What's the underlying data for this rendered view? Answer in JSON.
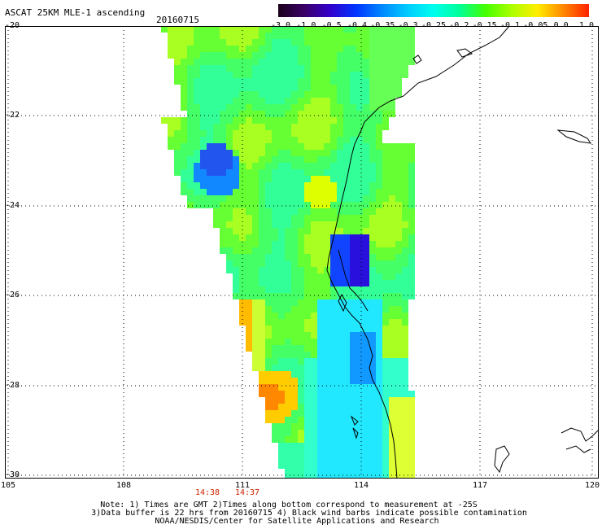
{
  "header": {
    "title": "ASCAT 25KM MLE-1 ascending",
    "date": "20160715"
  },
  "colorbar": {
    "labels": [
      "-3.0",
      "-1.0",
      "-0.5",
      "-0.4",
      "-0.35",
      "-0.3",
      "-0.25",
      "-0.2",
      "-0.15",
      "-0.1",
      "-0.05",
      "0.0",
      "1.0"
    ],
    "colors": [
      "#1a001a",
      "#3a0066",
      "#3300cc",
      "#0033ff",
      "#0088ff",
      "#00ccff",
      "#00ffee",
      "#00ff99",
      "#44ff00",
      "#aaff00",
      "#ffee00",
      "#ff8800",
      "#ff2200"
    ]
  },
  "axes": {
    "lat_labels": [
      "-20",
      "-22",
      "-24",
      "-26",
      "-28",
      "-30"
    ],
    "lon_labels": [
      "105",
      "108",
      "111",
      "114",
      "117",
      "120"
    ],
    "lat_range": [
      -30,
      -20
    ],
    "lon_range": [
      105,
      120
    ]
  },
  "pass_times": [
    "14:38",
    "14:37"
  ],
  "notes": [
    "Note: 1) Times are GMT 2)Times along bottom correspond to measurement at -25S",
    "3)Data buffer is 22 hrs from 20160715 4) Black wind barbs indicate possible contamination",
    "NOAA/NESDIS/Center for Satellite Applications and Research"
  ],
  "colors": {
    "swath_dominant": "#44ff66",
    "time_label": "#cc2200",
    "coastline": "#000000",
    "grid": "#000000"
  }
}
